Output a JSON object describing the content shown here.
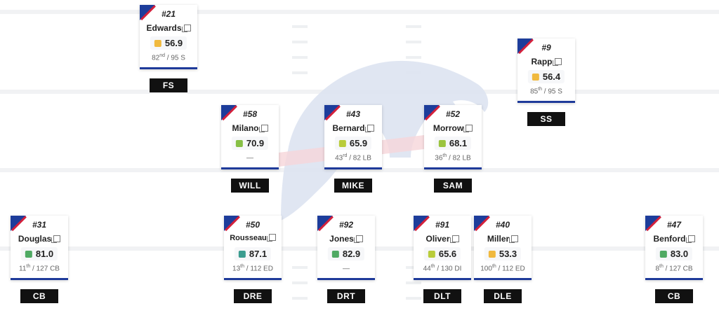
{
  "colors": {
    "navy": "#1d3d9b",
    "red": "#d3203b",
    "grade_orange": "#f0b93e",
    "grade_yellowgreen": "#b9cc3a",
    "grade_green": "#4faa63",
    "grade_teal": "#3a9c8f"
  },
  "players": [
    {
      "id": "fs",
      "jersey": "#21",
      "name": "Edwards",
      "grade": "56.9",
      "grade_color": "#f0b93e",
      "rank": "82",
      "rank_suffix": "nd",
      "rank_rest": " / 95 S",
      "position": "FS"
    },
    {
      "id": "ss",
      "jersey": "#9",
      "name": "Rapp",
      "grade": "56.4",
      "grade_color": "#f0b93e",
      "rank": "85",
      "rank_suffix": "th",
      "rank_rest": " / 95 S",
      "position": "SS"
    },
    {
      "id": "will",
      "jersey": "#58",
      "name": "Milano",
      "grade": "70.9",
      "grade_color": "#86bf45",
      "rank": "—",
      "rank_suffix": "",
      "rank_rest": "",
      "position": "WILL"
    },
    {
      "id": "mike",
      "jersey": "#43",
      "name": "Bernard",
      "grade": "65.9",
      "grade_color": "#b9cc3a",
      "rank": "43",
      "rank_suffix": "rd",
      "rank_rest": " / 82 LB",
      "position": "MIKE"
    },
    {
      "id": "sam",
      "jersey": "#52",
      "name": "Morrow",
      "grade": "68.1",
      "grade_color": "#9bc43e",
      "rank": "36",
      "rank_suffix": "th",
      "rank_rest": " / 82 LB",
      "position": "SAM"
    },
    {
      "id": "cb-left",
      "jersey": "#31",
      "name": "Douglas",
      "grade": "81.0",
      "grade_color": "#4faa63",
      "rank": "11",
      "rank_suffix": "th",
      "rank_rest": " / 127 CB",
      "position": "CB"
    },
    {
      "id": "dre",
      "jersey": "#50",
      "name": "Rousseau",
      "grade": "87.1",
      "grade_color": "#3a9c8f",
      "rank": "13",
      "rank_suffix": "th",
      "rank_rest": " / 112 ED",
      "position": "DRE"
    },
    {
      "id": "drt",
      "jersey": "#92",
      "name": "Jones",
      "grade": "82.9",
      "grade_color": "#4faa63",
      "rank": "—",
      "rank_suffix": "",
      "rank_rest": "",
      "position": "DRT"
    },
    {
      "id": "dlt",
      "jersey": "#91",
      "name": "Oliver",
      "grade": "65.6",
      "grade_color": "#b9cc3a",
      "rank": "44",
      "rank_suffix": "th",
      "rank_rest": " / 130 DI",
      "position": "DLT"
    },
    {
      "id": "dle",
      "jersey": "#40",
      "name": "Miller",
      "grade": "53.3",
      "grade_color": "#f0b93e",
      "rank": "100",
      "rank_suffix": "th",
      "rank_rest": " / 112 ED",
      "position": "DLE"
    },
    {
      "id": "cb-right",
      "jersey": "#47",
      "name": "Benford",
      "grade": "83.0",
      "grade_color": "#4faa63",
      "rank": "8",
      "rank_suffix": "th",
      "rank_rest": " / 127 CB",
      "position": "CB"
    }
  ]
}
